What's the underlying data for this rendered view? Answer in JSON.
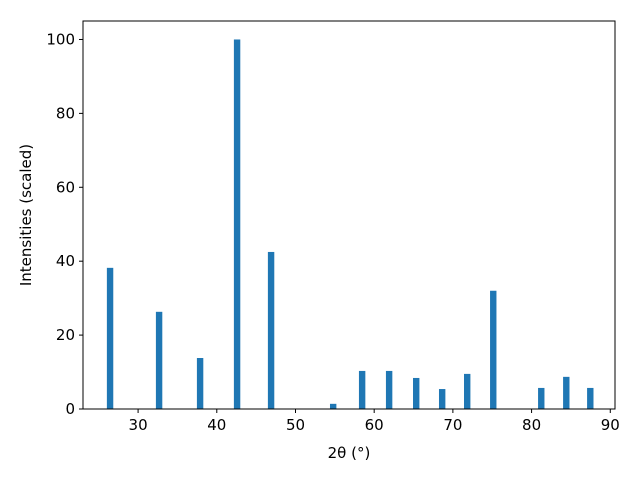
{
  "chart_data": {
    "type": "bar",
    "color": "#1f77b4",
    "x": [
      26.44,
      32.67,
      37.88,
      42.58,
      46.9,
      54.79,
      58.47,
      61.9,
      65.34,
      68.64,
      71.82,
      75.13,
      81.23,
      84.41,
      87.46
    ],
    "values": [
      38.2,
      26.3,
      13.8,
      100,
      42.5,
      1.4,
      10.3,
      10.3,
      8.4,
      5.4,
      9.5,
      32,
      5.7,
      8.7,
      5.7
    ],
    "xlabel": "2θ (°)",
    "ylabel": "Intensities (scaled)",
    "xlim": [
      23,
      90.6
    ],
    "ylim": [
      0,
      105
    ],
    "xticks": [
      30,
      40,
      50,
      60,
      70,
      80,
      90
    ],
    "yticks": [
      0,
      20,
      40,
      60,
      80,
      100
    ],
    "grid": false
  }
}
